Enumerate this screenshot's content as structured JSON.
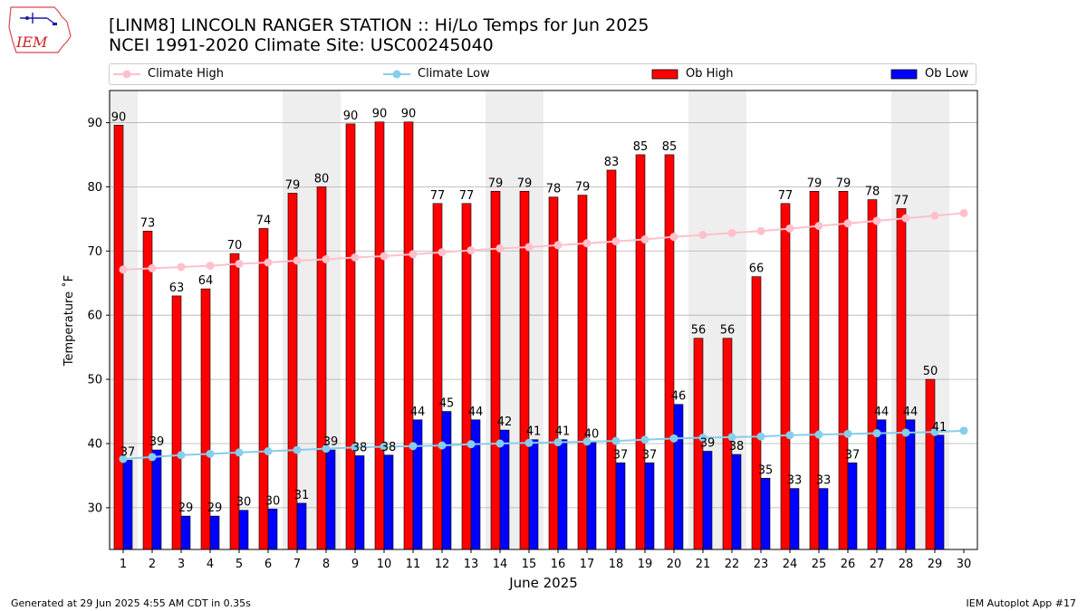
{
  "header": {
    "title_line1": "[LINM8] LINCOLN RANGER STATION :: Hi/Lo Temps for Jun 2025",
    "title_line2": "NCEI 1991-2020 Climate Site: USC00245040",
    "logo_text": "IEM"
  },
  "legend": {
    "climate_high": "Climate High",
    "climate_low": "Climate Low",
    "ob_high": "Ob High",
    "ob_low": "Ob Low"
  },
  "footer": {
    "generated": "Generated at 29 Jun 2025 4:55 AM CDT in 0.35s",
    "app": "IEM Autoplot App #17"
  },
  "colors": {
    "ob_high": "#ff0000",
    "ob_low": "#0000ff",
    "climate_high": "#ffc0cb",
    "climate_low": "#87ceeb",
    "weekend_shade": "#eeeeee",
    "grid": "#b0b0b0"
  },
  "chart_data": {
    "type": "bar",
    "xlabel": "June 2025",
    "ylabel": "Temperature ˚F",
    "ylim": [
      23.5,
      95
    ],
    "yticks": [
      30,
      40,
      50,
      60,
      70,
      80,
      90
    ],
    "grid": "horizontal",
    "legend_position": "top",
    "days": [
      1,
      2,
      3,
      4,
      5,
      6,
      7,
      8,
      9,
      10,
      11,
      12,
      13,
      14,
      15,
      16,
      17,
      18,
      19,
      20,
      21,
      22,
      23,
      24,
      25,
      26,
      27,
      28,
      29,
      30
    ],
    "weekend_shaded_days": [
      1,
      7,
      8,
      14,
      15,
      21,
      22,
      28,
      29
    ],
    "series": [
      {
        "name": "Ob High",
        "kind": "bar",
        "values": [
          90,
          73,
          63,
          64,
          70,
          74,
          79,
          80,
          90,
          90,
          90,
          77,
          77,
          79,
          79,
          78,
          79,
          83,
          85,
          85,
          56,
          56,
          66,
          77,
          79,
          79,
          78,
          77,
          50,
          null
        ],
        "bar_values": [
          89.6,
          73.1,
          63.0,
          64.1,
          69.6,
          73.5,
          79.0,
          80.0,
          89.8,
          90.1,
          90.1,
          77.4,
          77.4,
          79.3,
          79.3,
          78.4,
          78.7,
          82.6,
          85.0,
          85.0,
          56.4,
          56.4,
          66.0,
          77.4,
          79.3,
          79.3,
          78.0,
          76.6,
          50.0,
          null
        ]
      },
      {
        "name": "Ob Low",
        "kind": "bar",
        "values": [
          37,
          39,
          29,
          29,
          30,
          30,
          31,
          39,
          38,
          38,
          44,
          45,
          44,
          42,
          41,
          41,
          40,
          37,
          37,
          46,
          39,
          38,
          35,
          33,
          33,
          37,
          44,
          44,
          41,
          null
        ],
        "bar_values": [
          37.4,
          39.0,
          28.7,
          28.7,
          29.6,
          29.8,
          30.7,
          39.0,
          38.1,
          38.2,
          43.7,
          45.0,
          43.7,
          42.1,
          40.6,
          40.6,
          40.2,
          37.0,
          37.0,
          46.1,
          38.8,
          38.3,
          34.6,
          33.0,
          33.0,
          37.0,
          43.7,
          43.7,
          41.3,
          null
        ]
      },
      {
        "name": "Climate High",
        "kind": "line",
        "values": [
          67.1,
          67.3,
          67.5,
          67.7,
          68.0,
          68.2,
          68.5,
          68.7,
          69.0,
          69.2,
          69.5,
          69.8,
          70.1,
          70.4,
          70.6,
          70.9,
          71.2,
          71.5,
          71.8,
          72.2,
          72.5,
          72.8,
          73.1,
          73.5,
          73.9,
          74.3,
          74.7,
          75.1,
          75.5,
          75.9
        ]
      },
      {
        "name": "Climate Low",
        "kind": "line",
        "values": [
          37.6,
          37.9,
          38.2,
          38.4,
          38.6,
          38.8,
          39.0,
          39.2,
          39.4,
          39.5,
          39.6,
          39.7,
          39.9,
          40.0,
          40.1,
          40.2,
          40.3,
          40.4,
          40.6,
          40.8,
          40.9,
          41.0,
          41.1,
          41.3,
          41.4,
          41.5,
          41.6,
          41.7,
          41.8,
          42.0
        ]
      }
    ]
  }
}
